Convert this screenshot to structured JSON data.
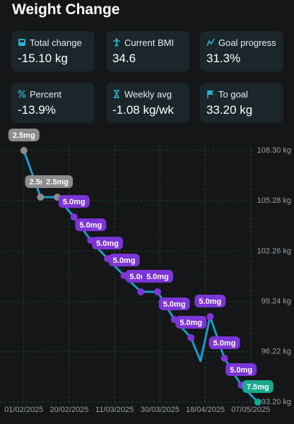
{
  "header": {
    "title": "Weight Change"
  },
  "stats": [
    {
      "label": "Total change",
      "value": "-15.10 kg"
    },
    {
      "label": "Current BMI",
      "value": "34.6"
    },
    {
      "label": "Goal progress",
      "value": "31.3%"
    },
    {
      "label": "Percent",
      "value": "-13.9%"
    },
    {
      "label": "Weekly avg",
      "value": "-1.08 kg/wk"
    },
    {
      "label": "To goal",
      "value": "33.20 kg"
    }
  ],
  "chart_data": {
    "type": "line",
    "x": [
      "01/02/2025",
      "08/02/2025",
      "15/02/2025",
      "22/02/2025",
      "01/03/2025",
      "08/03/2025",
      "15/03/2025",
      "22/03/2025",
      "29/03/2025",
      "05/04/2025",
      "12/04/2025",
      "16/04/2025",
      "20/04/2025",
      "26/04/2025",
      "03/05/2025",
      "10/05/2025"
    ],
    "values": [
      108.3,
      105.5,
      105.5,
      104.31,
      102.91,
      101.81,
      100.79,
      99.82,
      99.82,
      98.16,
      97.06,
      95.66,
      98.33,
      95.83,
      94.22,
      93.2
    ],
    "point_labels": [
      "2.5mg",
      "2.5mg",
      "2.5mg",
      "5.0mg",
      "5.0mg",
      "5.0mg",
      "5.0mg",
      "5.0mg",
      "5.0mg",
      "5.0mg",
      "5.0mg",
      null,
      "5.0mg",
      "5.0mg",
      "5.0mg",
      "7.5mg"
    ],
    "marker_colors": [
      "#8c8c8c",
      "#8c8c8c",
      "#8c8c8c",
      "#7c35d6",
      "#7c35d6",
      "#7c35d6",
      "#7c35d6",
      "#7c35d6",
      "#7c35d6",
      "#7c35d6",
      "#7c35d6",
      null,
      "#7c35d6",
      "#7c35d6",
      "#7c35d6",
      "#19a98f"
    ],
    "color": "#1b9bc8",
    "xlim": [
      "22/01/2025",
      "13/05/2025"
    ],
    "xticks": [
      "01/02/2025",
      "20/02/2025",
      "11/03/2025",
      "30/03/2025",
      "18/04/2025",
      "07/05/2025"
    ],
    "ylim": [
      93.2,
      108.3
    ],
    "yticks": [
      {
        "value": 108.3,
        "label": "108.30 kg"
      },
      {
        "value": 105.28,
        "label": "105.28 kg"
      },
      {
        "value": 102.26,
        "label": "102.26 kg"
      },
      {
        "value": 99.24,
        "label": "99.24 kg"
      },
      {
        "value": 96.22,
        "label": "96.22 kg"
      },
      {
        "value": 93.2,
        "label": "93.20 kg"
      }
    ],
    "grid": true
  }
}
